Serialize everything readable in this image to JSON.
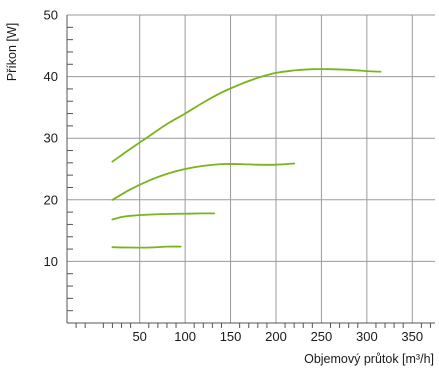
{
  "chart_data": {
    "type": "line",
    "title": "",
    "xlabel": "Objemový průtok [m³/h]",
    "ylabel": "Příkon [W]",
    "xlim": [
      -30,
      375
    ],
    "ylim": [
      0,
      50
    ],
    "xticks": [
      50,
      100,
      150,
      200,
      250,
      300,
      350
    ],
    "yticks": [
      10,
      20,
      30,
      40,
      50
    ],
    "grid": true,
    "line_color": "#7ab41c",
    "series": [
      {
        "x": [
          20,
          40,
          60,
          80,
          100,
          120,
          140,
          160,
          180,
          200,
          220,
          240,
          260,
          280,
          300,
          315
        ],
        "y": [
          26.2,
          28.3,
          30.3,
          32.3,
          34.0,
          35.8,
          37.4,
          38.7,
          39.8,
          40.6,
          41.0,
          41.2,
          41.2,
          41.1,
          40.9,
          40.8
        ]
      },
      {
        "x": [
          20,
          40,
          60,
          80,
          100,
          120,
          140,
          160,
          180,
          200,
          220
        ],
        "y": [
          20.0,
          21.7,
          23.1,
          24.2,
          25.0,
          25.5,
          25.8,
          25.8,
          25.7,
          25.7,
          25.9
        ]
      },
      {
        "x": [
          20,
          30,
          40,
          60,
          80,
          100,
          120,
          132
        ],
        "y": [
          16.8,
          17.2,
          17.4,
          17.6,
          17.7,
          17.75,
          17.8,
          17.8
        ]
      },
      {
        "x": [
          20,
          40,
          60,
          80,
          95
        ],
        "y": [
          12.3,
          12.25,
          12.25,
          12.4,
          12.4
        ]
      }
    ]
  }
}
